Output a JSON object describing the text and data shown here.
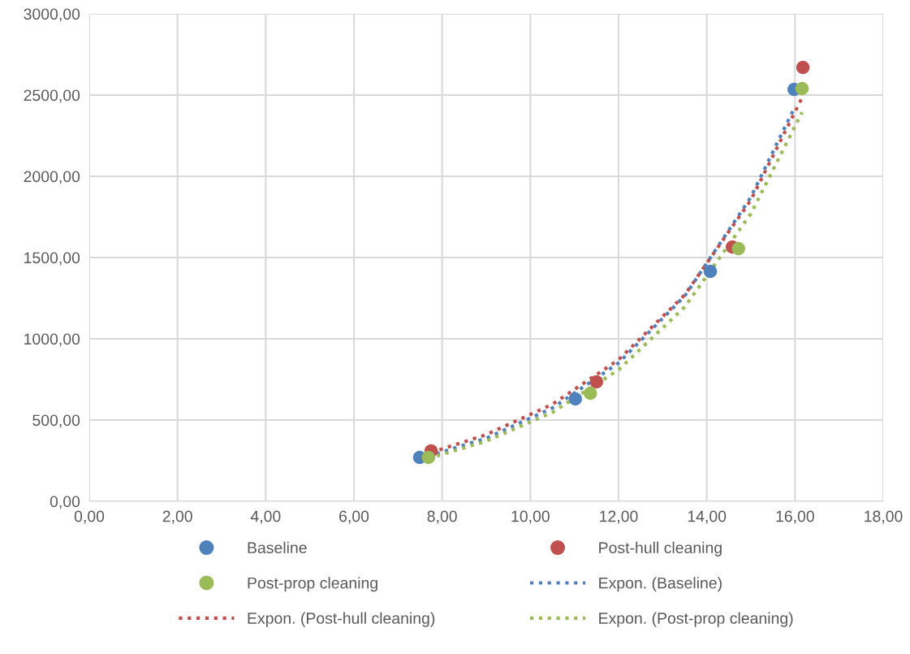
{
  "chart_data": {
    "type": "scatter",
    "marker": "circle",
    "grid": true,
    "legend": "bottom",
    "xlim": [
      0,
      18
    ],
    "xticks": [
      {
        "value": 0,
        "label": "0,00"
      },
      {
        "value": 2,
        "label": "2,00"
      },
      {
        "value": 4,
        "label": "4,00"
      },
      {
        "value": 6,
        "label": "6,00"
      },
      {
        "value": 8,
        "label": "8,00"
      },
      {
        "value": 10,
        "label": "10,00"
      },
      {
        "value": 12,
        "label": "12,00"
      },
      {
        "value": 14,
        "label": "14,00"
      },
      {
        "value": 16,
        "label": "16,00"
      },
      {
        "value": 18,
        "label": "18,00"
      }
    ],
    "ylim": [
      0,
      3000
    ],
    "yticks": [
      {
        "value": 0,
        "label": "0,00"
      },
      {
        "value": 500,
        "label": "500,00"
      },
      {
        "value": 1000,
        "label": "1000,00"
      },
      {
        "value": 1500,
        "label": "1500,00"
      },
      {
        "value": 2000,
        "label": "2000,00"
      },
      {
        "value": 2500,
        "label": "2500,00"
      },
      {
        "value": 3000,
        "label": "3000,00"
      }
    ],
    "series": [
      {
        "name": "Baseline",
        "color": "#4f81bd",
        "x": [
          7.49,
          11.02,
          14.08,
          15.98
        ],
        "values": [
          270,
          630,
          1415,
          2535
        ]
      },
      {
        "name": "Post-hull cleaning",
        "color": "#c0504d",
        "x": [
          7.75,
          11.5,
          14.58,
          16.18
        ],
        "values": [
          310,
          735,
          1565,
          2670
        ]
      },
      {
        "name": "Post-prop cleaning",
        "color": "#9bbb59",
        "x": [
          7.69,
          11.36,
          14.72,
          16.16
        ],
        "values": [
          270,
          665,
          1555,
          2540
        ]
      },
      {
        "name": "Expon. (Baseline)",
        "type": "line",
        "line_style": "dotted",
        "marker": "none",
        "color": "#4f81bd",
        "x": [
          7.49,
          9,
          10.5,
          12,
          13.5,
          15,
          15.98
        ],
        "values": [
          261,
          388,
          574,
          851,
          1263,
          1872,
          2418
        ]
      },
      {
        "name": "Expon. (Post-hull cleaning)",
        "type": "line",
        "line_style": "dotted",
        "marker": "none",
        "color": "#c0504d",
        "x": [
          7.75,
          9,
          10.5,
          12,
          13.5,
          15,
          16.18
        ],
        "values": [
          300,
          410,
          597,
          871,
          1270,
          1854,
          2494
        ]
      },
      {
        "name": "Expon. (Post-prop cleaning)",
        "type": "line",
        "line_style": "dotted",
        "marker": "none",
        "color": "#9bbb59",
        "x": [
          7.69,
          9,
          10.5,
          12,
          13.5,
          15,
          16.16
        ],
        "values": [
          263,
          370,
          547,
          809,
          1196,
          1770,
          2394
        ]
      }
    ]
  }
}
